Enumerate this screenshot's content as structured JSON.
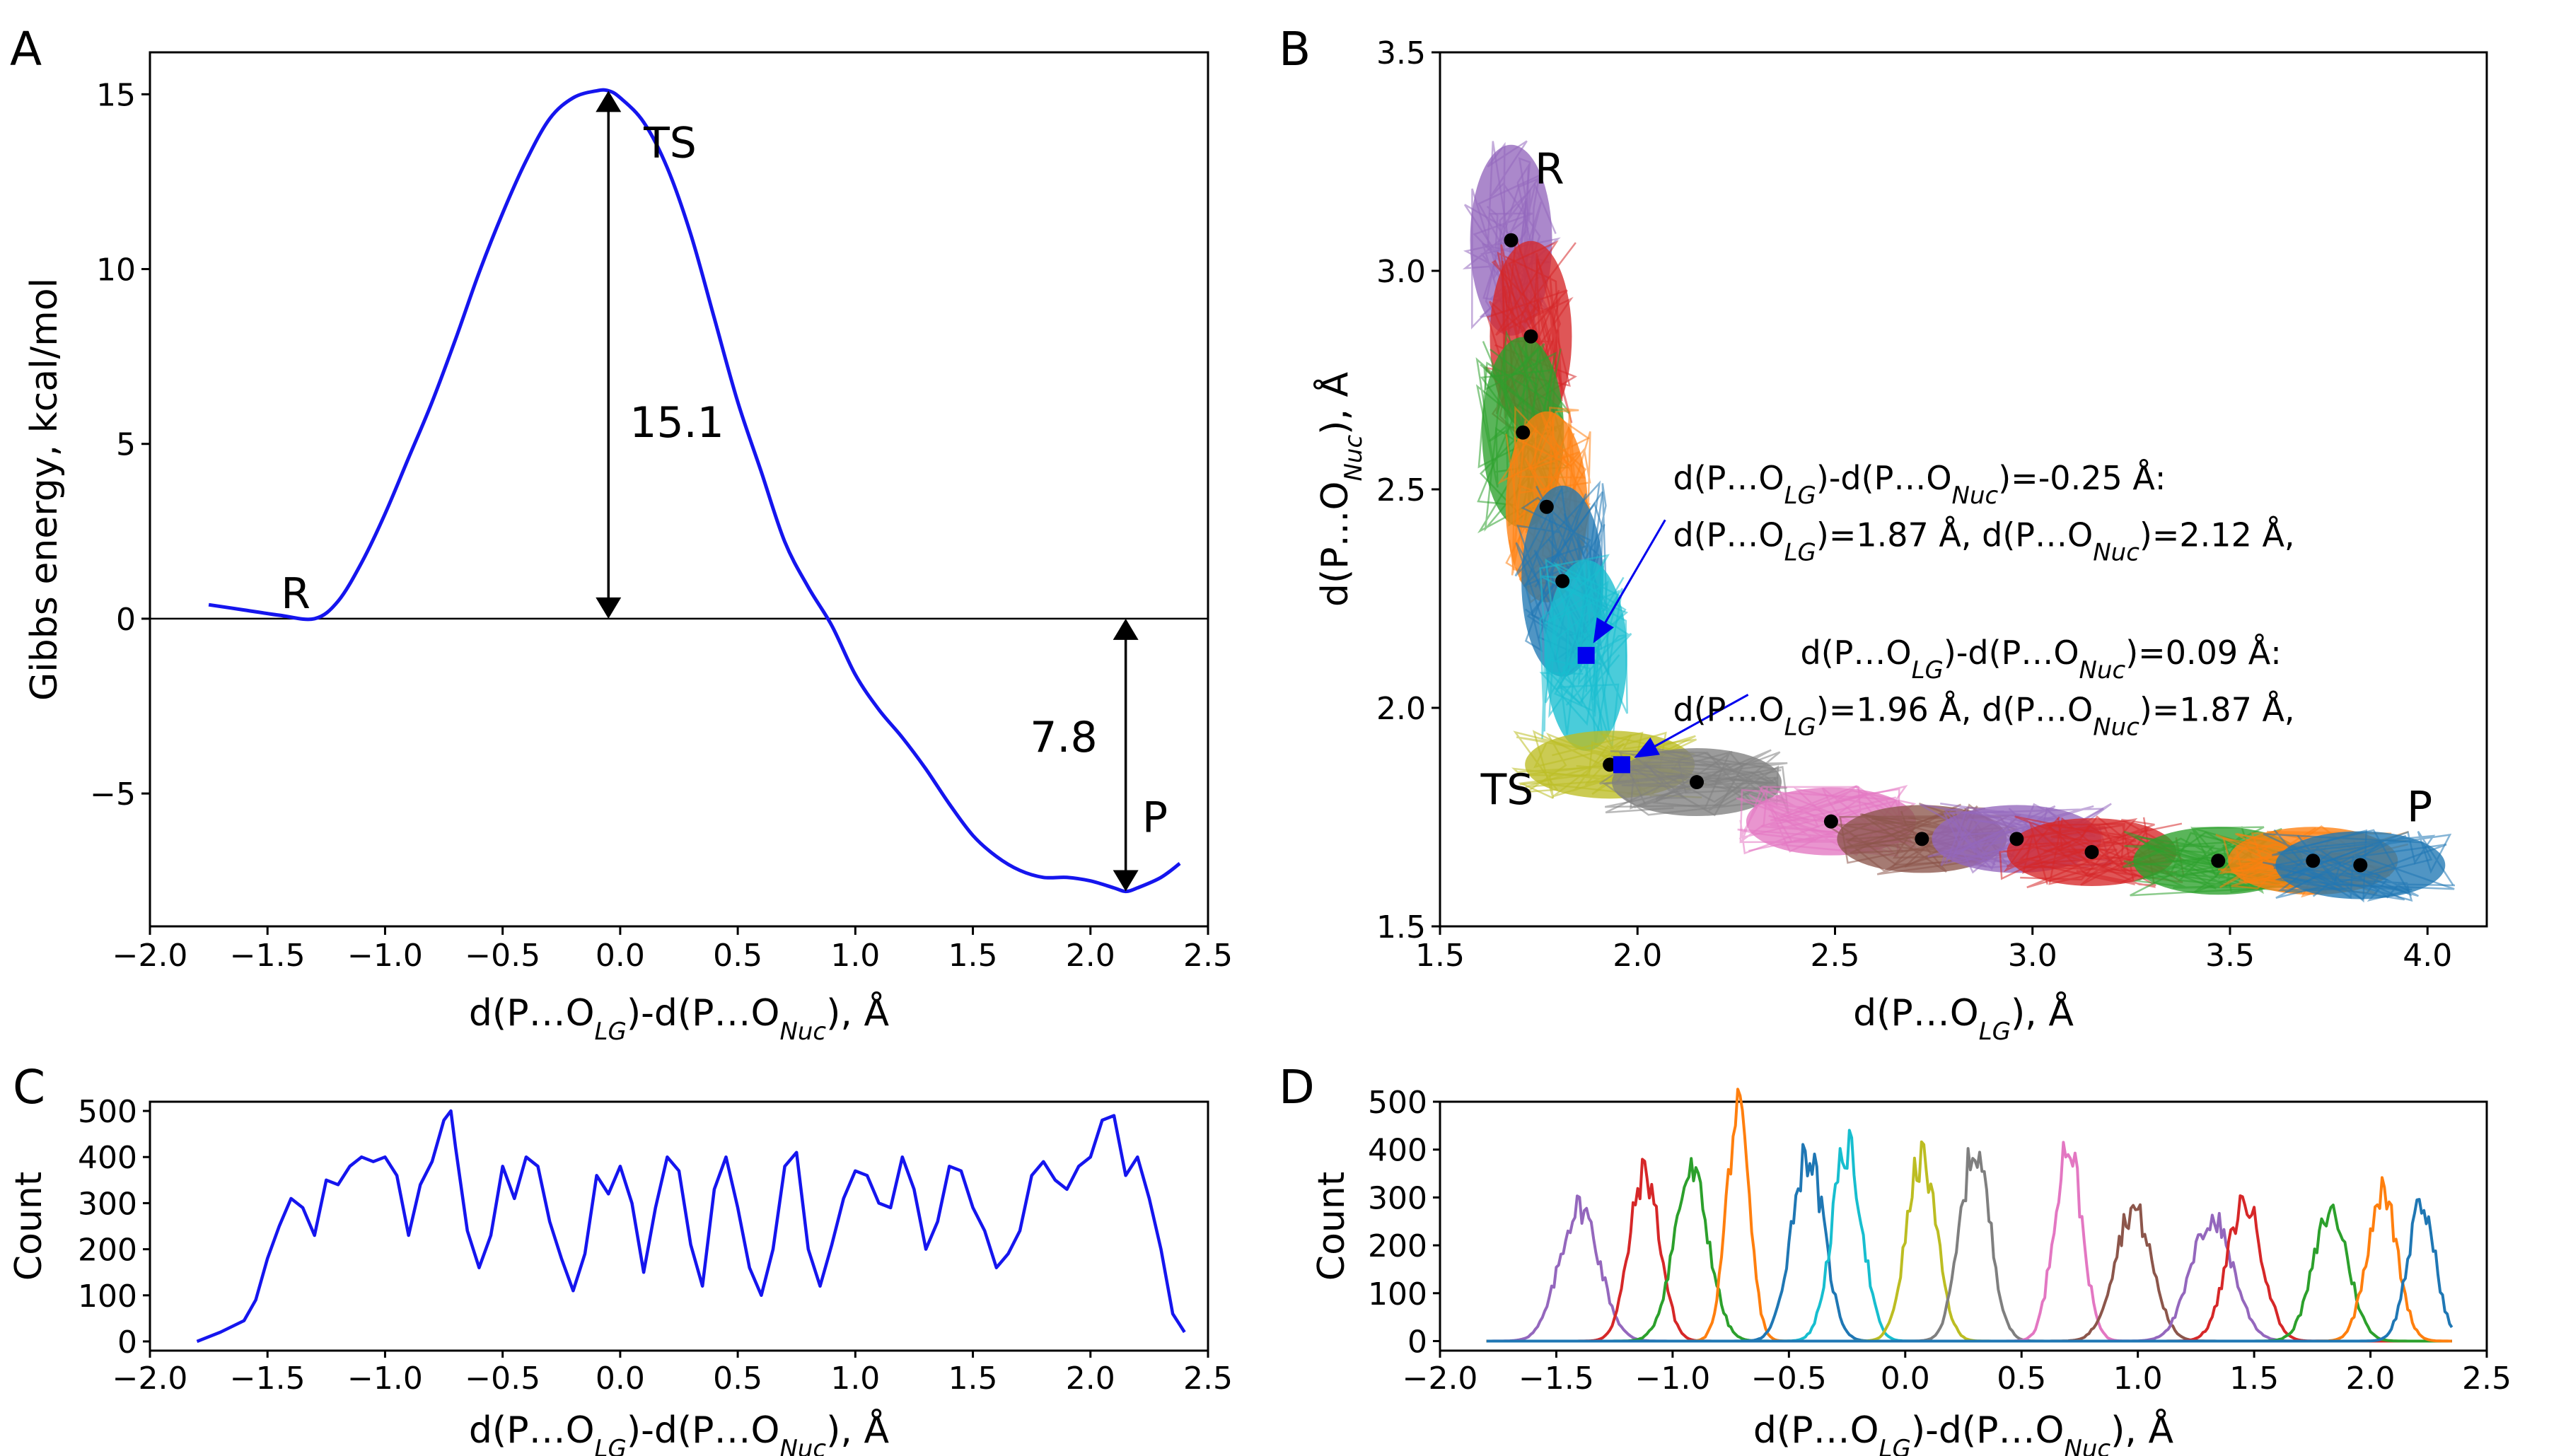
{
  "panels": {
    "a": "A",
    "b": "B",
    "c": "C",
    "d": "D"
  },
  "colors": {
    "line": "#1515ee",
    "tab10": [
      "#9467bd",
      "#d62728",
      "#2ca02c",
      "#ff7f0e",
      "#1f77b4",
      "#17becf",
      "#bcbd22",
      "#7f7f7f",
      "#e377c2",
      "#8c564b",
      "#9467bd",
      "#d62728",
      "#2ca02c",
      "#ff7f0e",
      "#1f77b4"
    ]
  },
  "chart_data": [
    {
      "id": "A",
      "type": "line",
      "ylabel": "Gibbs energy, kcal/mol",
      "xlabel": {
        "pre": "d(P…O",
        "sub1": "LG",
        "mid": ")-d(P…O",
        "sub2": "Nuc",
        "post": "), Å"
      },
      "xlim": [
        -2.0,
        2.5
      ],
      "ylim": [
        -8.8,
        16.2
      ],
      "xticks": [
        -2.0,
        -1.5,
        -1.0,
        -0.5,
        0.0,
        0.5,
        1.0,
        1.5,
        2.0,
        2.5
      ],
      "xtick_labels": [
        "−2.0",
        "−1.5",
        "−1.0",
        "−0.5",
        "0.0",
        "0.5",
        "1.0",
        "1.5",
        "2.0",
        "2.5"
      ],
      "yticks": [
        -5,
        0,
        5,
        10,
        15
      ],
      "ytick_labels": [
        "−5",
        "0",
        "5",
        "10",
        "15"
      ],
      "x": [
        -1.75,
        -1.6,
        -1.45,
        -1.3,
        -1.2,
        -1.1,
        -1.0,
        -0.9,
        -0.8,
        -0.7,
        -0.6,
        -0.5,
        -0.4,
        -0.3,
        -0.2,
        -0.1,
        -0.05,
        0.0,
        0.1,
        0.2,
        0.3,
        0.4,
        0.5,
        0.6,
        0.7,
        0.8,
        0.9,
        1.0,
        1.1,
        1.2,
        1.3,
        1.4,
        1.5,
        1.6,
        1.7,
        1.8,
        1.9,
        2.0,
        2.1,
        2.15,
        2.2,
        2.3,
        2.38
      ],
      "y": [
        0.4,
        0.25,
        0.1,
        0.0,
        0.5,
        1.6,
        3.0,
        4.6,
        6.2,
        8.0,
        9.9,
        11.6,
        13.1,
        14.3,
        14.9,
        15.1,
        15.1,
        14.9,
        14.2,
        12.9,
        11.0,
        8.6,
        6.2,
        4.2,
        2.2,
        0.9,
        -0.2,
        -1.6,
        -2.6,
        -3.4,
        -4.3,
        -5.3,
        -6.2,
        -6.8,
        -7.2,
        -7.4,
        -7.4,
        -7.5,
        -7.7,
        -7.8,
        -7.7,
        -7.4,
        -7.0
      ],
      "labels": {
        "R": "R",
        "TS": "TS",
        "P": "P"
      },
      "barrier": {
        "from": 0.0,
        "to": 15.1,
        "x": -0.05,
        "label": "15.1"
      },
      "reaction": {
        "from": 0.0,
        "to": -7.8,
        "x": 2.15,
        "label": "7.8"
      }
    },
    {
      "id": "B",
      "type": "scatter",
      "xlabel": {
        "pre": "d(P…O",
        "sub": "LG",
        "post": "), Å"
      },
      "ylabel": {
        "pre": "d(P…O",
        "sub": "Nuc",
        "post": "), Å"
      },
      "xlim": [
        1.5,
        4.15
      ],
      "ylim": [
        1.5,
        3.5
      ],
      "xticks": [
        1.5,
        2.0,
        2.5,
        3.0,
        3.5,
        4.0
      ],
      "xtick_labels": [
        "1.5",
        "2.0",
        "2.5",
        "3.0",
        "3.5",
        "4.0"
      ],
      "yticks": [
        1.5,
        2.0,
        2.5,
        3.0,
        3.5
      ],
      "ytick_labels": [
        "1.5",
        "2.0",
        "2.5",
        "3.0",
        "3.5"
      ],
      "windows": [
        {
          "x": 1.68,
          "y": 3.07
        },
        {
          "x": 1.73,
          "y": 2.85
        },
        {
          "x": 1.71,
          "y": 2.63
        },
        {
          "x": 1.77,
          "y": 2.46
        },
        {
          "x": 1.81,
          "y": 2.29
        },
        {
          "x": 1.87,
          "y": 2.12
        },
        {
          "x": 1.93,
          "y": 1.87
        },
        {
          "x": 2.15,
          "y": 1.83
        },
        {
          "x": 2.49,
          "y": 1.74
        },
        {
          "x": 2.72,
          "y": 1.7
        },
        {
          "x": 2.96,
          "y": 1.7
        },
        {
          "x": 3.15,
          "y": 1.67
        },
        {
          "x": 3.47,
          "y": 1.65
        },
        {
          "x": 3.71,
          "y": 1.65
        },
        {
          "x": 3.83,
          "y": 1.64
        }
      ],
      "markers": [
        {
          "x": 1.87,
          "y": 2.12,
          "arrow_from": {
            "x": 2.07,
            "y": 2.43
          }
        },
        {
          "x": 1.96,
          "y": 1.87,
          "arrow_from": {
            "x": 2.28,
            "y": 2.03
          }
        }
      ],
      "labels": {
        "R": "R",
        "TS": "TS",
        "P": "P"
      },
      "annotations": [
        {
          "l1": {
            "a": "d(P…O",
            "s1": "LG",
            "b": ")-d(P…O",
            "s2": "Nuc",
            "c": ")=-0.25 Å:"
          },
          "l2": {
            "a": "d(P…O",
            "s1": "LG",
            "b": ")=1.87 Å, d(P…O",
            "s2": "Nuc",
            "c": ")=2.12 Å,"
          }
        },
        {
          "l1": {
            "a": "d(P…O",
            "s1": "LG",
            "b": ")-d(P…O",
            "s2": "Nuc",
            "c": ")=0.09 Å:"
          },
          "l2": {
            "a": "d(P…O",
            "s1": "LG",
            "b": ")=1.96 Å, d(P…O",
            "s2": "Nuc",
            "c": ")=1.87 Å,"
          }
        }
      ]
    },
    {
      "id": "C",
      "type": "line",
      "ylabel": "Count",
      "xlabel": {
        "pre": "d(P…O",
        "sub1": "LG",
        "mid": ")-d(P…O",
        "sub2": "Nuc",
        "post": "), Å"
      },
      "xlim": [
        -2.0,
        2.5
      ],
      "ylim": [
        -20,
        520
      ],
      "xticks": [
        -2.0,
        -1.5,
        -1.0,
        -0.5,
        0.0,
        0.5,
        1.0,
        1.5,
        2.0,
        2.5
      ],
      "xtick_labels": [
        "−2.0",
        "−1.5",
        "−1.0",
        "−0.5",
        "0.0",
        "0.5",
        "1.0",
        "1.5",
        "2.0",
        "2.5"
      ],
      "yticks": [
        0,
        100,
        200,
        300,
        400,
        500
      ],
      "ytick_labels": [
        "0",
        "100",
        "200",
        "300",
        "400",
        "500"
      ],
      "x": [
        -1.8,
        -1.7,
        -1.6,
        -1.55,
        -1.5,
        -1.45,
        -1.4,
        -1.35,
        -1.3,
        -1.25,
        -1.2,
        -1.15,
        -1.1,
        -1.05,
        -1.0,
        -0.95,
        -0.9,
        -0.85,
        -0.8,
        -0.75,
        -0.72,
        -0.7,
        -0.65,
        -0.6,
        -0.55,
        -0.5,
        -0.45,
        -0.4,
        -0.35,
        -0.3,
        -0.25,
        -0.2,
        -0.15,
        -0.1,
        -0.05,
        0.0,
        0.05,
        0.1,
        0.15,
        0.2,
        0.25,
        0.3,
        0.35,
        0.4,
        0.45,
        0.5,
        0.55,
        0.6,
        0.65,
        0.7,
        0.75,
        0.8,
        0.85,
        0.9,
        0.95,
        1.0,
        1.05,
        1.1,
        1.15,
        1.2,
        1.25,
        1.3,
        1.35,
        1.4,
        1.45,
        1.5,
        1.55,
        1.6,
        1.65,
        1.7,
        1.75,
        1.8,
        1.85,
        1.9,
        1.95,
        2.0,
        2.05,
        2.1,
        2.15,
        2.2,
        2.25,
        2.3,
        2.35,
        2.4
      ],
      "y": [
        0,
        20,
        45,
        90,
        180,
        250,
        310,
        290,
        230,
        350,
        340,
        380,
        400,
        390,
        400,
        360,
        230,
        340,
        390,
        480,
        500,
        420,
        240,
        160,
        230,
        380,
        310,
        400,
        380,
        260,
        180,
        110,
        190,
        360,
        320,
        380,
        300,
        150,
        290,
        400,
        370,
        210,
        120,
        330,
        400,
        290,
        160,
        100,
        200,
        380,
        410,
        200,
        120,
        210,
        310,
        370,
        360,
        300,
        290,
        400,
        330,
        200,
        260,
        380,
        370,
        290,
        240,
        160,
        190,
        240,
        360,
        390,
        350,
        330,
        380,
        400,
        480,
        490,
        360,
        400,
        310,
        200,
        60,
        20
      ]
    },
    {
      "id": "D",
      "type": "line",
      "ylabel": "Count",
      "xlabel": {
        "pre": "d(P…O",
        "sub1": "LG",
        "mid": ")-d(P…O",
        "sub2": "Nuc",
        "post": "), Å"
      },
      "xlim": [
        -2.0,
        2.5
      ],
      "ylim": [
        -20,
        500
      ],
      "xticks": [
        -2.0,
        -1.5,
        -1.0,
        -0.5,
        0.0,
        0.5,
        1.0,
        1.5,
        2.0,
        2.5
      ],
      "xtick_labels": [
        "−2.0",
        "−1.5",
        "−1.0",
        "−0.5",
        "0.0",
        "0.5",
        "1.0",
        "1.5",
        "2.0",
        "2.5"
      ],
      "yticks": [
        0,
        100,
        200,
        300,
        400,
        500
      ],
      "ytick_labels": [
        "0",
        "100",
        "200",
        "300",
        "400",
        "500"
      ],
      "x_range": [
        -1.8,
        2.35
      ],
      "series": [
        {
          "mu": -1.4,
          "sigma": 0.085,
          "peak": 280
        },
        {
          "mu": -1.12,
          "sigma": 0.065,
          "peak": 350
        },
        {
          "mu": -0.92,
          "sigma": 0.075,
          "peak": 350
        },
        {
          "mu": -0.72,
          "sigma": 0.05,
          "peak": 470
        },
        {
          "mu": -0.42,
          "sigma": 0.07,
          "peak": 390
        },
        {
          "mu": -0.25,
          "sigma": 0.065,
          "peak": 400
        },
        {
          "mu": 0.07,
          "sigma": 0.065,
          "peak": 380
        },
        {
          "mu": 0.3,
          "sigma": 0.065,
          "peak": 400
        },
        {
          "mu": 0.7,
          "sigma": 0.06,
          "peak": 410
        },
        {
          "mu": 0.98,
          "sigma": 0.08,
          "peak": 275
        },
        {
          "mu": 1.32,
          "sigma": 0.09,
          "peak": 255
        },
        {
          "mu": 1.46,
          "sigma": 0.075,
          "peak": 290
        },
        {
          "mu": 1.83,
          "sigma": 0.075,
          "peak": 270
        },
        {
          "mu": 2.05,
          "sigma": 0.065,
          "peak": 310
        },
        {
          "mu": 2.22,
          "sigma": 0.06,
          "peak": 280
        }
      ]
    }
  ]
}
